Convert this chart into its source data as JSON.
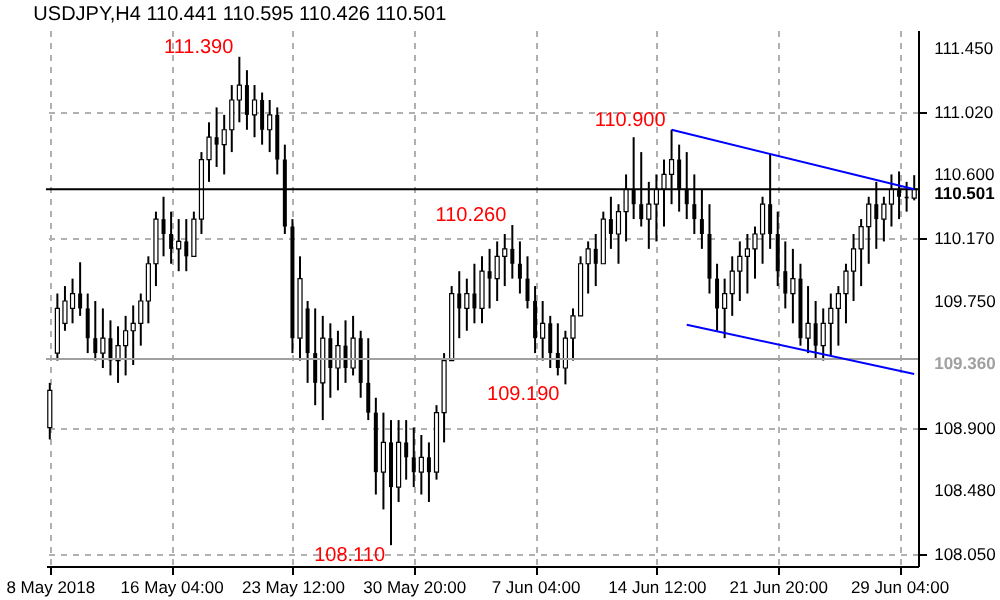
{
  "chart_data": {
    "type": "candlestick",
    "title": "USDJPY,H4  110.441 110.595 110.426 110.501",
    "categories": [
      "8 May 2018",
      null,
      null,
      null,
      null,
      null,
      null,
      null,
      null,
      null,
      null,
      null,
      null,
      null,
      null,
      null,
      "16 May 04:00",
      null,
      null,
      null,
      null,
      null,
      null,
      null,
      null,
      null,
      null,
      null,
      null,
      null,
      null,
      null,
      "23 May 12:00",
      null,
      null,
      null,
      null,
      null,
      null,
      null,
      null,
      null,
      null,
      null,
      null,
      null,
      null,
      null,
      "30 May 20:00",
      null,
      null,
      null,
      null,
      null,
      null,
      null,
      null,
      null,
      null,
      null,
      null,
      null,
      null,
      null,
      "7 Jun 04:00",
      null,
      null,
      null,
      null,
      null,
      null,
      null,
      null,
      null,
      null,
      null,
      null,
      null,
      null,
      null,
      "14 Jun 12:00",
      null,
      null,
      null,
      null,
      null,
      null,
      null,
      null,
      null,
      null,
      null,
      null,
      null,
      null,
      null,
      "21 Jun 20:00",
      null,
      null,
      null,
      null,
      null,
      null,
      null,
      null,
      null,
      null,
      null,
      null,
      null,
      null,
      null,
      "29 Jun 04:00",
      null,
      null
    ],
    "ohlc": [
      [
        108.9,
        109.2,
        108.82,
        109.15
      ],
      [
        109.4,
        109.8,
        109.35,
        109.7
      ],
      [
        109.6,
        109.85,
        109.55,
        109.75
      ],
      [
        109.7,
        109.9,
        109.6,
        109.8
      ],
      [
        109.8,
        110.01,
        109.65,
        109.7
      ],
      [
        109.7,
        109.8,
        109.4,
        109.5
      ],
      [
        109.5,
        109.75,
        109.35,
        109.4
      ],
      [
        109.4,
        109.7,
        109.3,
        109.5
      ],
      [
        109.5,
        109.62,
        109.25,
        109.35
      ],
      [
        109.35,
        109.58,
        109.2,
        109.45
      ],
      [
        109.45,
        109.65,
        109.25,
        109.55
      ],
      [
        109.55,
        109.72,
        109.32,
        109.6
      ],
      [
        109.6,
        109.8,
        109.45,
        109.75
      ],
      [
        109.75,
        110.05,
        109.6,
        110
      ],
      [
        110,
        110.35,
        109.85,
        110.3
      ],
      [
        110.3,
        110.45,
        110.05,
        110.2
      ],
      [
        110.2,
        110.35,
        110,
        110.1
      ],
      [
        110.1,
        110.3,
        109.95,
        110.15
      ],
      [
        110.15,
        110.3,
        109.95,
        110.05
      ],
      [
        110.05,
        110.35,
        110.05,
        110.3
      ],
      [
        110.3,
        110.75,
        110.2,
        110.7
      ],
      [
        110.7,
        110.95,
        110.55,
        110.85
      ],
      [
        110.85,
        111.05,
        110.65,
        110.8
      ],
      [
        110.8,
        111,
        110.6,
        110.9
      ],
      [
        110.9,
        111.2,
        110.75,
        111.1
      ],
      [
        111.1,
        111.39,
        110.95,
        111.2
      ],
      [
        111.2,
        111.3,
        110.9,
        111
      ],
      [
        111,
        111.2,
        110.85,
        111.1
      ],
      [
        111.1,
        111.15,
        110.8,
        110.9
      ],
      [
        110.9,
        111.1,
        110.75,
        111
      ],
      [
        111,
        111.05,
        110.6,
        110.7
      ],
      [
        110.7,
        110.8,
        110.2,
        110.25
      ],
      [
        110.25,
        110.3,
        109.4,
        109.5
      ],
      [
        109.5,
        110.05,
        109.35,
        109.9
      ],
      [
        109.7,
        109.75,
        109.2,
        109.4
      ],
      [
        109.4,
        109.7,
        109.05,
        109.2
      ],
      [
        109.2,
        109.65,
        108.95,
        109.5
      ],
      [
        109.5,
        109.6,
        109.1,
        109.3
      ],
      [
        109.3,
        109.55,
        109.15,
        109.45
      ],
      [
        109.45,
        109.62,
        109.2,
        109.3
      ],
      [
        109.3,
        109.65,
        109.25,
        109.5
      ],
      [
        109.5,
        109.55,
        109.1,
        109.2
      ],
      [
        109.2,
        109.5,
        108.95,
        109
      ],
      [
        109,
        109.1,
        108.45,
        108.6
      ],
      [
        108.6,
        109,
        108.35,
        108.8
      ],
      [
        108.8,
        108.95,
        108.11,
        108.5
      ],
      [
        108.5,
        108.95,
        108.4,
        108.8
      ],
      [
        108.8,
        108.95,
        108.55,
        108.7
      ],
      [
        108.7,
        108.9,
        108.5,
        108.6
      ],
      [
        108.6,
        108.85,
        108.45,
        108.7
      ],
      [
        108.7,
        108.8,
        108.4,
        108.6
      ],
      [
        108.6,
        109.05,
        108.55,
        109
      ],
      [
        109,
        109.4,
        108.8,
        109.35
      ],
      [
        109.35,
        109.85,
        109.35,
        109.8
      ],
      [
        109.8,
        109.95,
        109.5,
        109.7
      ],
      [
        109.7,
        109.9,
        109.55,
        109.8
      ],
      [
        109.8,
        110,
        109.6,
        109.7
      ],
      [
        109.7,
        110.05,
        109.6,
        109.95
      ],
      [
        109.95,
        110.1,
        109.7,
        109.9
      ],
      [
        109.9,
        110.15,
        109.75,
        110.05
      ],
      [
        110.05,
        110.2,
        109.85,
        110.1
      ],
      [
        110.1,
        110.26,
        109.9,
        110
      ],
      [
        110,
        110.15,
        109.8,
        109.9
      ],
      [
        109.9,
        110.05,
        109.7,
        109.75
      ],
      [
        109.75,
        109.85,
        109.4,
        109.5
      ],
      [
        109.5,
        109.75,
        109.35,
        109.6
      ],
      [
        109.6,
        109.65,
        109.3,
        109.4
      ],
      [
        109.4,
        109.6,
        109.25,
        109.3
      ],
      [
        109.3,
        109.55,
        109.19,
        109.5
      ],
      [
        109.5,
        109.7,
        109.35,
        109.65
      ],
      [
        109.65,
        110.05,
        109.65,
        110
      ],
      [
        110,
        110.15,
        109.8,
        110.1
      ],
      [
        110.1,
        110.2,
        109.85,
        110
      ],
      [
        110,
        110.35,
        110,
        110.3
      ],
      [
        110.3,
        110.45,
        110.1,
        110.2
      ],
      [
        110.2,
        110.4,
        110,
        110.35
      ],
      [
        110.35,
        110.6,
        110.15,
        110.5
      ],
      [
        110.5,
        110.85,
        110.3,
        110.4
      ],
      [
        110.4,
        110.75,
        110.25,
        110.3
      ],
      [
        110.3,
        110.55,
        110.1,
        110.4
      ],
      [
        110.4,
        110.6,
        110.15,
        110.5
      ],
      [
        110.5,
        110.7,
        110.25,
        110.6
      ],
      [
        110.6,
        110.9,
        110.4,
        110.7
      ],
      [
        110.7,
        110.8,
        110.35,
        110.5
      ],
      [
        110.5,
        110.75,
        110.3,
        110.4
      ],
      [
        110.4,
        110.6,
        110.2,
        110.3
      ],
      [
        110.3,
        110.5,
        110.1,
        110.2
      ],
      [
        110.2,
        110.4,
        109.8,
        109.9
      ],
      [
        109.9,
        110,
        109.55,
        109.7
      ],
      [
        109.7,
        109.9,
        109.5,
        109.8
      ],
      [
        109.8,
        110.05,
        109.65,
        109.95
      ],
      [
        109.95,
        110.15,
        109.75,
        110.05
      ],
      [
        110.05,
        110.2,
        109.8,
        110.1
      ],
      [
        110.1,
        110.25,
        109.9,
        110.2
      ],
      [
        110.2,
        110.45,
        110,
        110.4
      ],
      [
        110.4,
        110.74,
        110.1,
        110.2
      ],
      [
        110.2,
        110.35,
        109.85,
        109.95
      ],
      [
        109.95,
        110.15,
        109.7,
        109.8
      ],
      [
        109.8,
        110.1,
        109.6,
        109.9
      ],
      [
        109.9,
        110,
        109.45,
        109.5
      ],
      [
        109.5,
        109.85,
        109.4,
        109.6
      ],
      [
        109.6,
        109.75,
        109.36,
        109.45
      ],
      [
        109.45,
        109.7,
        109.35,
        109.6
      ],
      [
        109.6,
        109.8,
        109.38,
        109.7
      ],
      [
        109.7,
        109.85,
        109.45,
        109.8
      ],
      [
        109.8,
        110,
        109.6,
        109.95
      ],
      [
        109.95,
        110.2,
        109.75,
        110.1
      ],
      [
        110.1,
        110.3,
        109.85,
        110.25
      ],
      [
        110.25,
        110.45,
        110,
        110.4
      ],
      [
        110.4,
        110.55,
        110.1,
        110.3
      ],
      [
        110.3,
        110.45,
        110.15,
        110.4
      ],
      [
        110.4,
        110.6,
        110.25,
        110.5
      ],
      [
        110.5,
        110.62,
        110.3,
        110.45
      ],
      [
        110.45,
        110.55,
        110.35,
        110.44
      ],
      [
        110.441,
        110.595,
        110.426,
        110.501
      ]
    ],
    "series": [
      {
        "type": "line",
        "color": "#0000ff",
        "values": [
          null,
          null,
          null,
          null,
          null,
          null,
          null,
          null,
          null,
          null,
          null,
          null,
          null,
          null,
          null,
          null,
          null,
          null,
          null,
          null,
          null,
          null,
          null,
          null,
          null,
          null,
          null,
          null,
          null,
          null,
          null,
          null,
          null,
          null,
          null,
          null,
          null,
          null,
          null,
          null,
          null,
          null,
          null,
          null,
          null,
          null,
          null,
          null,
          null,
          null,
          null,
          null,
          null,
          null,
          null,
          null,
          null,
          null,
          null,
          null,
          null,
          null,
          null,
          null,
          null,
          null,
          null,
          null,
          null,
          null,
          null,
          null,
          null,
          null,
          null,
          null,
          null,
          null,
          null,
          null,
          null,
          null,
          110.9,
          null,
          null,
          null,
          null,
          null,
          null,
          null,
          null,
          null,
          null,
          null,
          null,
          null,
          null,
          null,
          null,
          null,
          null,
          null,
          null,
          null,
          null,
          null,
          null,
          null,
          null,
          null,
          null,
          null,
          null,
          null,
          110.5
        ]
      },
      {
        "type": "line",
        "color": "#0000ff",
        "values": [
          null,
          null,
          null,
          null,
          null,
          null,
          null,
          null,
          null,
          null,
          null,
          null,
          null,
          null,
          null,
          null,
          null,
          null,
          null,
          null,
          null,
          null,
          null,
          null,
          null,
          null,
          null,
          null,
          null,
          null,
          null,
          null,
          null,
          null,
          null,
          null,
          null,
          null,
          null,
          null,
          null,
          null,
          null,
          null,
          null,
          null,
          null,
          null,
          null,
          null,
          null,
          null,
          null,
          null,
          null,
          null,
          null,
          null,
          null,
          null,
          null,
          null,
          null,
          null,
          null,
          null,
          null,
          null,
          null,
          null,
          null,
          null,
          null,
          null,
          null,
          null,
          null,
          null,
          null,
          null,
          null,
          null,
          null,
          null,
          109.59,
          null,
          null,
          null,
          null,
          null,
          null,
          null,
          null,
          null,
          null,
          null,
          null,
          null,
          null,
          null,
          null,
          null,
          null,
          null,
          null,
          null,
          null,
          null,
          null,
          null,
          null,
          null,
          null,
          null,
          109.26
        ]
      }
    ],
    "ylim": [
      107.97,
      111.57
    ],
    "yticks": [
      {
        "value": 108.05,
        "label": "108.050"
      },
      {
        "value": 108.48,
        "label": "108.480"
      },
      {
        "value": 108.9,
        "label": "108.900"
      },
      {
        "value": 109.75,
        "label": "109.750"
      },
      {
        "value": 110.17,
        "label": "110.170"
      },
      {
        "value": 110.6,
        "label": "110.600"
      },
      {
        "value": 111.02,
        "label": "111.020"
      },
      {
        "value": 111.45,
        "label": "111.450"
      }
    ],
    "ref_lines": [
      {
        "axis": "y",
        "value": 110.501,
        "label": "110.501",
        "color": "#000000"
      },
      {
        "axis": "y",
        "value": 109.36,
        "label": "109.360",
        "color": "#a0a0a0"
      }
    ],
    "annotations": [
      "111.390",
      "110.260",
      "108.110",
      "109.190",
      "110.900"
    ],
    "grid": true
  }
}
